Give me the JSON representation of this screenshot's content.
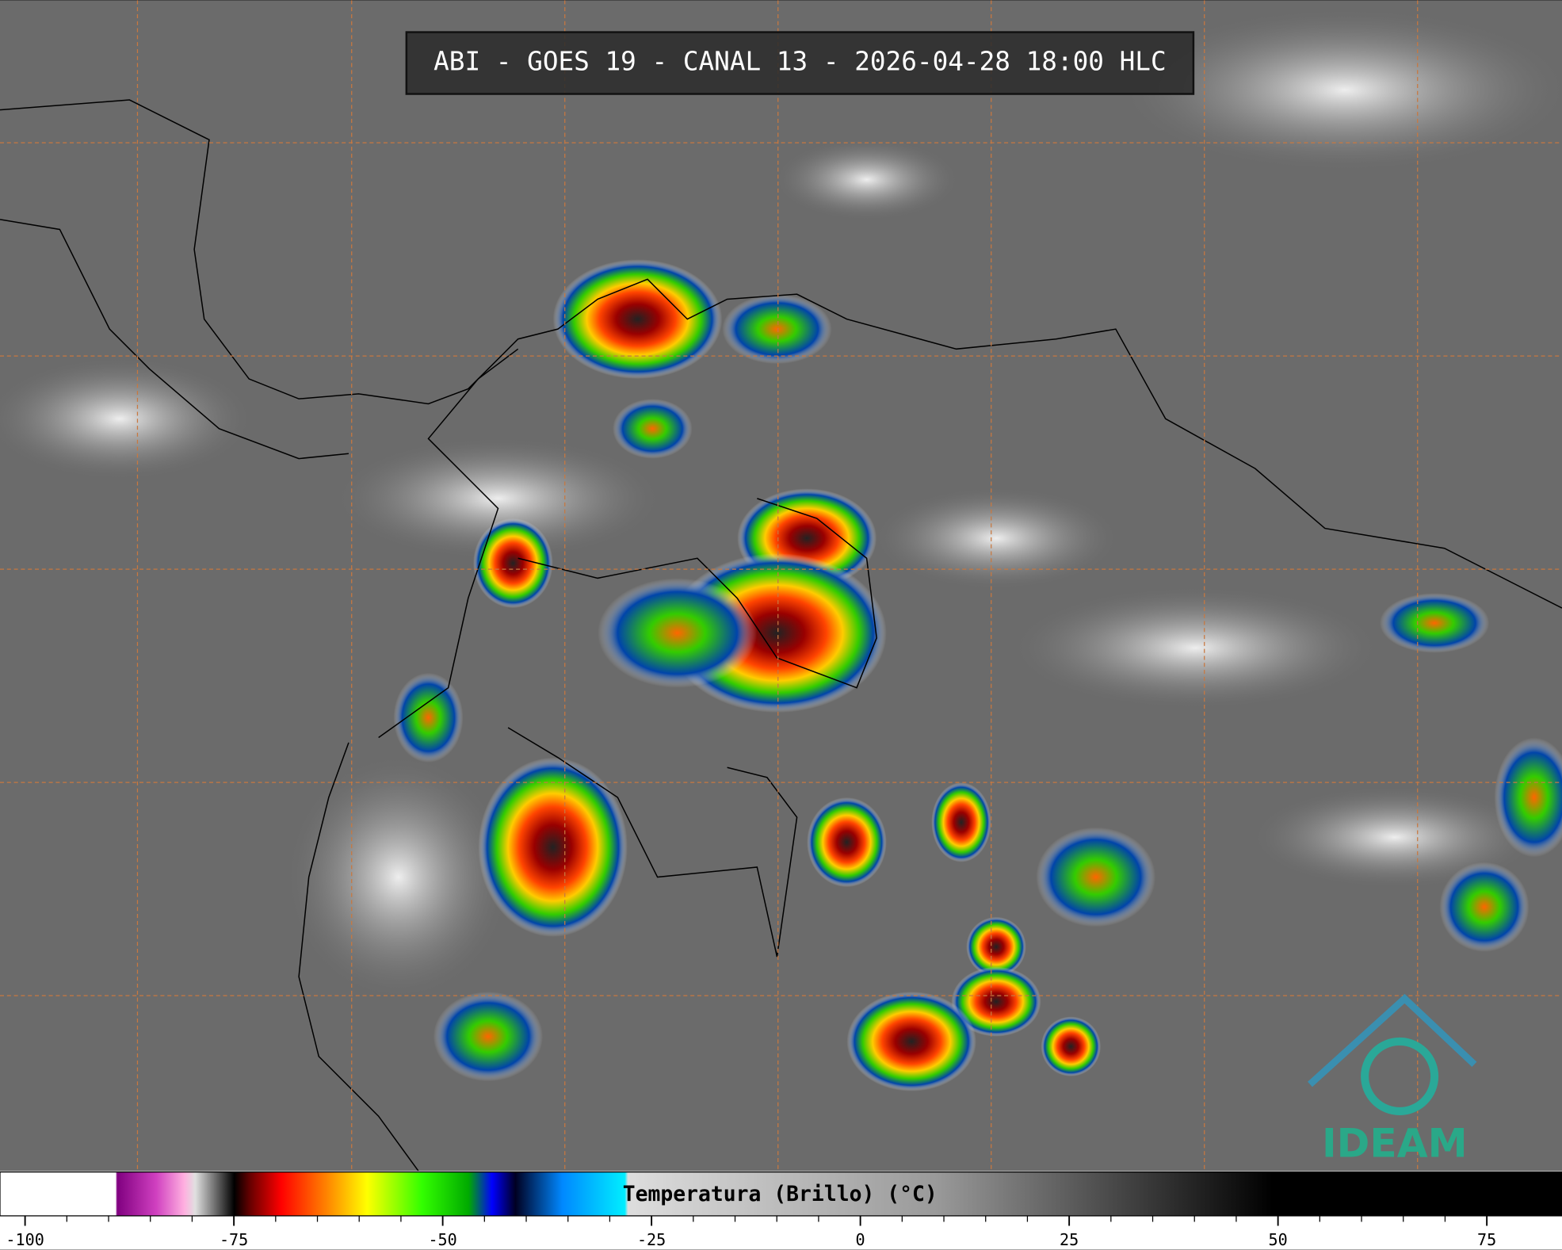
{
  "title": "ABI - GOES 19 - CANAL 13 - 2026-04-28 18:00 HLC",
  "colorbar": {
    "label": "Temperatura (Brillo) (°C)",
    "lim": [
      -103,
      84
    ],
    "ticks": [
      -100,
      -75,
      -50,
      -25,
      0,
      25,
      50,
      75
    ]
  },
  "logo": "IDEAM"
}
